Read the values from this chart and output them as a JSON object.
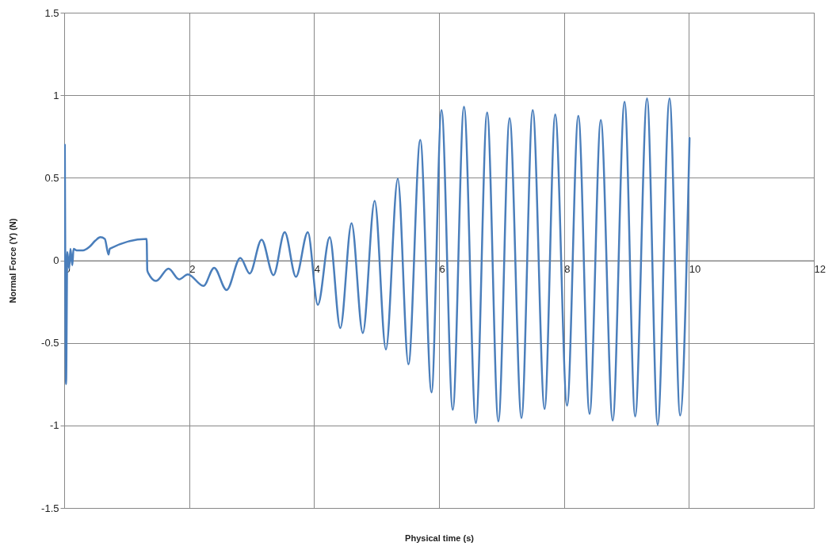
{
  "chart_data": {
    "type": "line",
    "xlabel": "Physical time (s)",
    "ylabel": "Normal Force (Y) (N)",
    "xlim": [
      0,
      12
    ],
    "xticks": [
      0,
      2,
      4,
      6,
      8,
      10,
      12
    ],
    "ylim": [
      -1.5,
      1.5
    ],
    "yticks": [
      -1.5,
      -1,
      -0.5,
      0,
      0.5,
      1,
      1.5
    ],
    "grid": true,
    "series": [
      {
        "color": "#4a7ebb",
        "x": [
          0,
          0.01,
          0.02,
          0.03,
          0.05,
          0.08,
          0.1,
          0.13,
          0.15,
          0.2,
          0.3,
          0.4,
          0.5,
          0.58,
          0.65,
          0.71,
          0.73,
          1.32,
          1.33,
          1.35,
          1.47,
          1.67,
          1.84,
          1.98,
          2.23,
          2.4,
          2.6,
          2.82,
          2.97,
          3.16,
          3.35,
          3.53,
          3.71,
          3.9,
          4.06,
          4.25,
          4.42,
          4.6,
          4.78,
          4.97,
          5.15,
          5.34,
          5.51,
          5.7,
          5.88,
          6.04,
          6.22,
          6.4,
          6.59,
          6.77,
          6.95,
          7.13,
          7.32,
          7.5,
          7.69,
          7.86,
          8.05,
          8.23,
          8.41,
          8.59,
          8.78,
          8.97,
          9.14,
          9.33,
          9.5,
          9.69,
          9.86,
          10.01
        ],
        "values": [
          0,
          0.7,
          -0.35,
          -0.75,
          0.05,
          -0.05,
          0.07,
          -0.03,
          0.07,
          0.06,
          0.06,
          0.08,
          0.12,
          0.14,
          0.13,
          0.035,
          0.07,
          0.13,
          -0.06,
          -0.08,
          -0.125,
          -0.05,
          -0.115,
          -0.085,
          -0.155,
          -0.045,
          -0.18,
          0.015,
          -0.08,
          0.125,
          -0.09,
          0.17,
          -0.1,
          0.17,
          -0.27,
          0.14,
          -0.41,
          0.225,
          -0.44,
          0.36,
          -0.54,
          0.495,
          -0.63,
          0.73,
          -0.8,
          0.91,
          -0.905,
          0.93,
          -0.985,
          0.895,
          -0.975,
          0.86,
          -0.955,
          0.91,
          -0.9,
          0.883,
          -0.88,
          0.875,
          -0.93,
          0.85,
          -0.97,
          0.96,
          -0.945,
          0.98,
          -0.995,
          0.98,
          -0.94,
          0.74
        ]
      }
    ]
  }
}
